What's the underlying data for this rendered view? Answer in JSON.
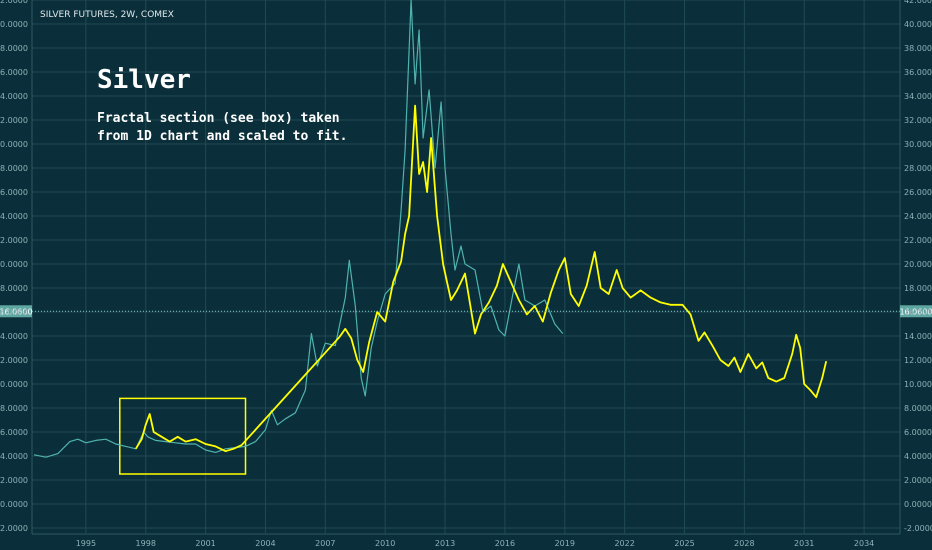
{
  "chart_data": {
    "type": "line",
    "title": "SILVER FUTURES, 2W, COMEX",
    "annotation_title": "Silver",
    "annotation_text": [
      "Fractal section (see box) taken",
      "from 1D chart and scaled to fit."
    ],
    "y_ticks": [
      "-2.0000",
      "0.0000",
      "2.0000",
      "4.0000",
      "6.0000",
      "8.0000",
      "10.0000",
      "12.0000",
      "14.0000",
      "16.0000",
      "18.0000",
      "20.0000",
      "22.0000",
      "24.0000",
      "26.0000",
      "28.0000",
      "30.0000",
      "32.0000",
      "34.0000",
      "36.0000",
      "38.0000",
      "40.0000",
      "42.0000"
    ],
    "x_ticks": [
      "1995",
      "1998",
      "2001",
      "2004",
      "2007",
      "2010",
      "2013",
      "2016",
      "2019",
      "2022",
      "2025",
      "2028",
      "2031",
      "2034"
    ],
    "ylim": [
      -2.5,
      42
    ],
    "xlim": [
      1992.3,
      2035.8
    ],
    "current_price_label": "16.0600",
    "current_price": 16.06,
    "grid": true,
    "box": {
      "x0": 1996.7,
      "x1": 2003.0,
      "y0": 2.5,
      "y1": 8.8
    },
    "series": [
      {
        "color": "#4fb3ad",
        "points": [
          [
            1992.4,
            4.1
          ],
          [
            1993.0,
            3.9
          ],
          [
            1993.6,
            4.2
          ],
          [
            1994.2,
            5.2
          ],
          [
            1994.6,
            5.4
          ],
          [
            1995.0,
            5.1
          ],
          [
            1995.5,
            5.3
          ],
          [
            1996.0,
            5.4
          ],
          [
            1996.5,
            5.0
          ],
          [
            1997.0,
            4.8
          ],
          [
            1997.5,
            4.6
          ],
          [
            1997.9,
            6.0
          ],
          [
            1998.1,
            5.6
          ],
          [
            1998.5,
            5.3
          ],
          [
            1999.0,
            5.2
          ],
          [
            1999.5,
            5.1
          ],
          [
            2000.0,
            5.0
          ],
          [
            2000.5,
            5.0
          ],
          [
            2001.0,
            4.5
          ],
          [
            2001.5,
            4.3
          ],
          [
            2002.0,
            4.6
          ],
          [
            2002.5,
            4.7
          ],
          [
            2003.0,
            4.8
          ],
          [
            2003.5,
            5.2
          ],
          [
            2004.0,
            6.2
          ],
          [
            2004.3,
            7.8
          ],
          [
            2004.6,
            6.6
          ],
          [
            2005.0,
            7.1
          ],
          [
            2005.5,
            7.6
          ],
          [
            2006.0,
            9.5
          ],
          [
            2006.3,
            14.2
          ],
          [
            2006.6,
            11.5
          ],
          [
            2007.0,
            13.4
          ],
          [
            2007.5,
            13.2
          ],
          [
            2008.0,
            17.2
          ],
          [
            2008.2,
            20.3
          ],
          [
            2008.5,
            16.5
          ],
          [
            2008.8,
            10.5
          ],
          [
            2009.0,
            9.0
          ],
          [
            2009.3,
            13.0
          ],
          [
            2009.6,
            15.2
          ],
          [
            2010.0,
            17.5
          ],
          [
            2010.5,
            18.4
          ],
          [
            2010.8,
            24.5
          ],
          [
            2011.0,
            29.5
          ],
          [
            2011.3,
            42.0
          ],
          [
            2011.5,
            35.0
          ],
          [
            2011.7,
            39.5
          ],
          [
            2011.9,
            30.5
          ],
          [
            2012.2,
            34.5
          ],
          [
            2012.5,
            28.0
          ],
          [
            2012.8,
            33.5
          ],
          [
            2013.0,
            28.0
          ],
          [
            2013.3,
            22.5
          ],
          [
            2013.5,
            19.5
          ],
          [
            2013.8,
            21.5
          ],
          [
            2014.0,
            20.0
          ],
          [
            2014.5,
            19.5
          ],
          [
            2014.9,
            16.0
          ],
          [
            2015.3,
            16.5
          ],
          [
            2015.7,
            14.5
          ],
          [
            2016.0,
            14.0
          ],
          [
            2016.4,
            17.5
          ],
          [
            2016.7,
            20.0
          ],
          [
            2017.0,
            17.0
          ],
          [
            2017.5,
            16.5
          ],
          [
            2018.0,
            17.0
          ],
          [
            2018.5,
            15.0
          ],
          [
            2018.9,
            14.2
          ]
        ]
      },
      {
        "color": "#ffff00",
        "points": [
          [
            1997.5,
            4.6
          ],
          [
            1997.8,
            5.4
          ],
          [
            1998.0,
            6.6
          ],
          [
            1998.2,
            7.5
          ],
          [
            1998.4,
            6.0
          ],
          [
            1998.8,
            5.6
          ],
          [
            1999.2,
            5.2
          ],
          [
            1999.6,
            5.6
          ],
          [
            2000.0,
            5.2
          ],
          [
            2000.5,
            5.4
          ],
          [
            2001.0,
            5.0
          ],
          [
            2001.5,
            4.8
          ],
          [
            2002.0,
            4.4
          ],
          [
            2002.4,
            4.6
          ],
          [
            2002.8,
            4.9
          ],
          [
            2007.7,
            13.9
          ],
          [
            2008.0,
            14.6
          ],
          [
            2008.3,
            13.8
          ],
          [
            2008.6,
            12.0
          ],
          [
            2008.9,
            11.0
          ],
          [
            2009.2,
            13.5
          ],
          [
            2009.6,
            16.0
          ],
          [
            2010.0,
            15.2
          ],
          [
            2010.4,
            18.5
          ],
          [
            2010.8,
            20.2
          ],
          [
            2011.0,
            22.5
          ],
          [
            2011.2,
            24.0
          ],
          [
            2011.5,
            33.2
          ],
          [
            2011.7,
            27.5
          ],
          [
            2011.9,
            28.5
          ],
          [
            2012.1,
            26.0
          ],
          [
            2012.3,
            30.5
          ],
          [
            2012.6,
            24.0
          ],
          [
            2012.9,
            20.0
          ],
          [
            2013.1,
            18.5
          ],
          [
            2013.3,
            17.0
          ],
          [
            2013.6,
            17.8
          ],
          [
            2014.0,
            19.2
          ],
          [
            2014.2,
            17.2
          ],
          [
            2014.5,
            14.2
          ],
          [
            2014.8,
            15.8
          ],
          [
            2015.2,
            16.8
          ],
          [
            2015.6,
            18.2
          ],
          [
            2015.9,
            20.0
          ],
          [
            2016.3,
            18.5
          ],
          [
            2016.7,
            17.0
          ],
          [
            2017.1,
            15.8
          ],
          [
            2017.5,
            16.5
          ],
          [
            2017.9,
            15.2
          ],
          [
            2018.3,
            17.6
          ],
          [
            2018.7,
            19.5
          ],
          [
            2019.0,
            20.5
          ],
          [
            2019.3,
            17.5
          ],
          [
            2019.7,
            16.5
          ],
          [
            2020.1,
            18.2
          ],
          [
            2020.5,
            21.0
          ],
          [
            2020.8,
            18.0
          ],
          [
            2021.2,
            17.5
          ],
          [
            2021.6,
            19.5
          ],
          [
            2021.9,
            18.0
          ],
          [
            2022.3,
            17.2
          ],
          [
            2022.8,
            17.8
          ],
          [
            2023.3,
            17.2
          ],
          [
            2023.8,
            16.8
          ],
          [
            2024.3,
            16.6
          ],
          [
            2024.9,
            16.6
          ],
          [
            2025.3,
            15.8
          ],
          [
            2025.7,
            13.6
          ],
          [
            2026.0,
            14.3
          ],
          [
            2026.4,
            13.2
          ],
          [
            2026.8,
            12.0
          ],
          [
            2027.2,
            11.5
          ],
          [
            2027.5,
            12.2
          ],
          [
            2027.8,
            11.0
          ],
          [
            2028.2,
            12.5
          ],
          [
            2028.6,
            11.3
          ],
          [
            2028.9,
            11.8
          ],
          [
            2029.2,
            10.5
          ],
          [
            2029.6,
            10.2
          ],
          [
            2030.0,
            10.5
          ],
          [
            2030.4,
            12.5
          ],
          [
            2030.6,
            14.1
          ],
          [
            2030.8,
            13.0
          ],
          [
            2031.0,
            10.0
          ],
          [
            2031.3,
            9.5
          ],
          [
            2031.6,
            8.9
          ],
          [
            2031.9,
            10.5
          ],
          [
            2032.1,
            11.9
          ]
        ]
      }
    ]
  }
}
